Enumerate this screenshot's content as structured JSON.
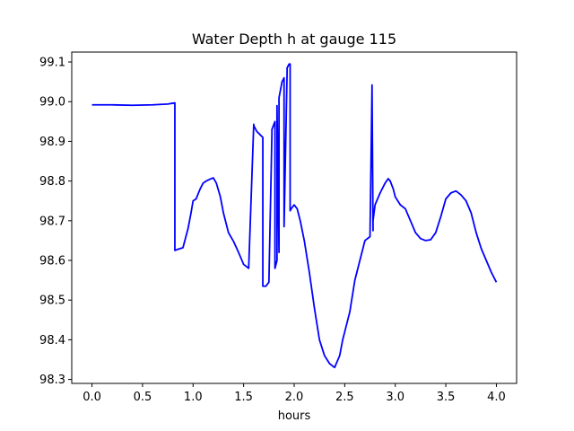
{
  "chart_data": {
    "type": "line",
    "title": "Water Depth h at gauge 115",
    "xlabel": "hours",
    "ylabel": "",
    "xlim": [
      -0.2,
      4.2
    ],
    "ylim": [
      98.29,
      99.125
    ],
    "xticks": [
      0.0,
      0.5,
      1.0,
      1.5,
      2.0,
      2.5,
      3.0,
      3.5,
      4.0
    ],
    "xtick_labels": [
      "0.0",
      "0.5",
      "1.0",
      "1.5",
      "2.0",
      "2.5",
      "3.0",
      "3.5",
      "4.0"
    ],
    "yticks": [
      98.3,
      98.4,
      98.5,
      98.6,
      98.7,
      98.8,
      98.9,
      99.0,
      99.1
    ],
    "ytick_labels": [
      "98.3",
      "98.4",
      "98.5",
      "98.6",
      "98.7",
      "98.8",
      "98.9",
      "99.0",
      "99.1"
    ],
    "grid": false,
    "color": "#0000ff",
    "series": [
      {
        "x": [
          0.0,
          0.2,
          0.4,
          0.6,
          0.75,
          0.82,
          0.82,
          0.85,
          0.9,
          0.95,
          0.98,
          1.0,
          1.03,
          1.07,
          1.1,
          1.13,
          1.17,
          1.2,
          1.23,
          1.27,
          1.3,
          1.35,
          1.4,
          1.45,
          1.5,
          1.55,
          1.6,
          1.6,
          1.63,
          1.67,
          1.69,
          1.69,
          1.72,
          1.75,
          1.78,
          1.78,
          1.81,
          1.81,
          1.83,
          1.83,
          1.85,
          1.85,
          1.88,
          1.9,
          1.9,
          1.93,
          1.93,
          1.95,
          1.96,
          1.96,
          1.97,
          2.0,
          2.03,
          2.06,
          2.1,
          2.15,
          2.2,
          2.25,
          2.3,
          2.35,
          2.4,
          2.45,
          2.48,
          2.5,
          2.55,
          2.6,
          2.65,
          2.7,
          2.75,
          2.77,
          2.77,
          2.78,
          2.78,
          2.8,
          2.85,
          2.9,
          2.93,
          2.95,
          2.98,
          3.0,
          3.05,
          3.1,
          3.15,
          3.2,
          3.25,
          3.3,
          3.35,
          3.4,
          3.45,
          3.5,
          3.55,
          3.6,
          3.65,
          3.7,
          3.75,
          3.8,
          3.85,
          3.9,
          3.95,
          4.0
        ],
        "y": [
          98.992,
          98.992,
          98.991,
          98.992,
          98.994,
          98.997,
          98.625,
          98.628,
          98.632,
          98.68,
          98.72,
          98.75,
          98.755,
          98.78,
          98.795,
          98.8,
          98.805,
          98.808,
          98.795,
          98.76,
          98.72,
          98.67,
          98.648,
          98.62,
          98.59,
          98.58,
          98.943,
          98.94,
          98.925,
          98.915,
          98.91,
          98.535,
          98.535,
          98.545,
          98.92,
          98.93,
          98.95,
          98.58,
          98.6,
          98.99,
          98.62,
          99.01,
          99.05,
          99.06,
          98.685,
          99.075,
          99.085,
          99.095,
          99.095,
          98.725,
          98.73,
          98.74,
          98.73,
          98.7,
          98.65,
          98.57,
          98.48,
          98.4,
          98.36,
          98.34,
          98.33,
          98.36,
          98.4,
          98.42,
          98.47,
          98.55,
          98.6,
          98.65,
          98.66,
          99.035,
          99.042,
          98.675,
          98.7,
          98.74,
          98.77,
          98.795,
          98.806,
          98.8,
          98.78,
          98.76,
          98.74,
          98.73,
          98.7,
          98.67,
          98.655,
          98.65,
          98.652,
          98.67,
          98.71,
          98.755,
          98.77,
          98.775,
          98.765,
          98.75,
          98.72,
          98.67,
          98.63,
          98.6,
          98.57,
          98.545
        ]
      }
    ]
  }
}
